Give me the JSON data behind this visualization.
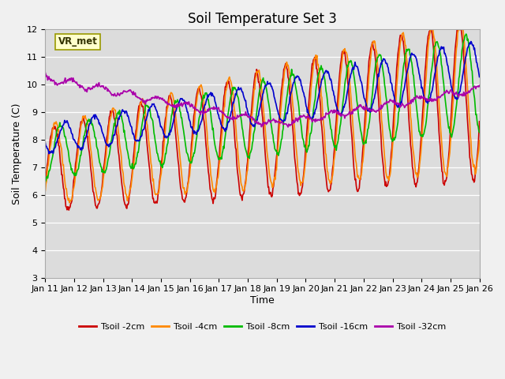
{
  "title": "Soil Temperature Set 3",
  "xlabel": "Time",
  "ylabel": "Soil Temperature (C)",
  "ylim": [
    3.0,
    12.0
  ],
  "yticks": [
    3.0,
    4.0,
    5.0,
    6.0,
    7.0,
    8.0,
    9.0,
    10.0,
    11.0,
    12.0
  ],
  "xlabels": [
    "Jan 11",
    "Jan 12",
    "Jan 13",
    "Jan 14",
    "Jan 15",
    "Jan 16",
    "Jan 17",
    "Jan 18",
    "Jan 19",
    "Jan 20",
    "Jan 21",
    "Jan 22",
    "Jan 23",
    "Jan 24",
    "Jan 25",
    "Jan 26"
  ],
  "series_colors": [
    "#cc0000",
    "#ff8800",
    "#00bb00",
    "#0000cc",
    "#aa00aa"
  ],
  "series_labels": [
    "Tsoil -2cm",
    "Tsoil -4cm",
    "Tsoil -8cm",
    "Tsoil -16cm",
    "Tsoil -32cm"
  ],
  "figure_bg": "#f0f0f0",
  "plot_bg": "#dcdcdc",
  "annotation_text": "VR_met",
  "annotation_bg": "#ffffcc",
  "annotation_border": "#999900",
  "line_width": 1.2,
  "title_fontsize": 12,
  "label_fontsize": 9,
  "tick_fontsize": 8
}
